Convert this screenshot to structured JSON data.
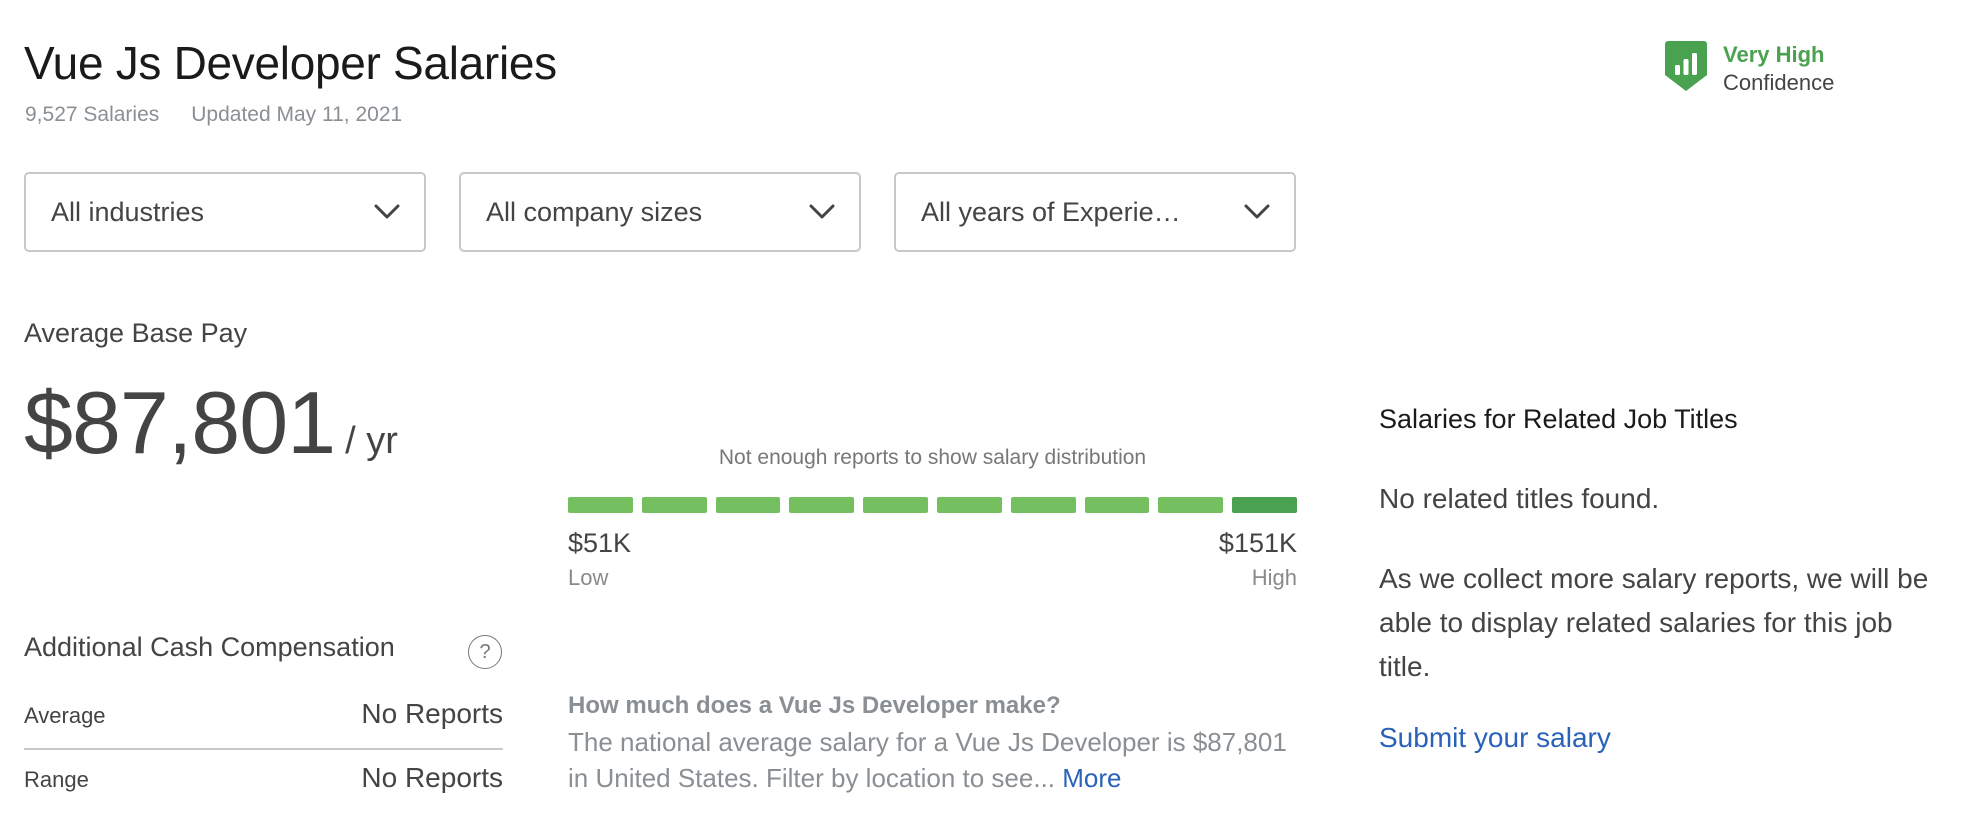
{
  "header": {
    "title": "Vue Js Developer Salaries",
    "salary_count": "9,527 Salaries",
    "updated": "Updated May 11, 2021"
  },
  "confidence": {
    "icon": "bar-chart-shield-icon",
    "level": "Very High",
    "label": "Confidence",
    "color": "#4aa251"
  },
  "filters": [
    {
      "value": "All industries",
      "icon": "chevron-down-icon"
    },
    {
      "value": "All company sizes",
      "icon": "chevron-down-icon"
    },
    {
      "value": "All years of Experie…",
      "icon": "chevron-down-icon"
    }
  ],
  "base_pay": {
    "label": "Average Base Pay",
    "amount": "$87,801",
    "period": "/ yr"
  },
  "distribution": {
    "caption": "Not enough reports to show salary distribution",
    "low_value": "$51K",
    "low_label": "Low",
    "high_value": "$151K",
    "high_label": "High",
    "segment_count": 10,
    "segment_color": "#74bf5f",
    "highlight_color": "#4aa251",
    "highlight_index": 9
  },
  "additional_comp": {
    "title": "Additional Cash Compensation",
    "help_icon": "question-circle-icon",
    "help_glyph": "?",
    "rows": [
      {
        "label": "Average",
        "value": "No Reports"
      },
      {
        "label": "Range",
        "value": "No Reports"
      }
    ]
  },
  "faq": {
    "question": "How much does a Vue Js Developer make?",
    "answer": "The national average salary for a Vue Js Developer is $87,801 in United States. Filter by location to see...",
    "more_link": "More"
  },
  "related": {
    "title": "Salaries for Related Job Titles",
    "empty": "No related titles found.",
    "body": "As we collect more salary reports, we will be able to display related salaries for this job title.",
    "submit_link": "Submit your salary"
  },
  "colors": {
    "link": "#2a62b9",
    "muted_text": "#8a8f94",
    "body_text": "#444444",
    "border": "#c8c8c8"
  }
}
